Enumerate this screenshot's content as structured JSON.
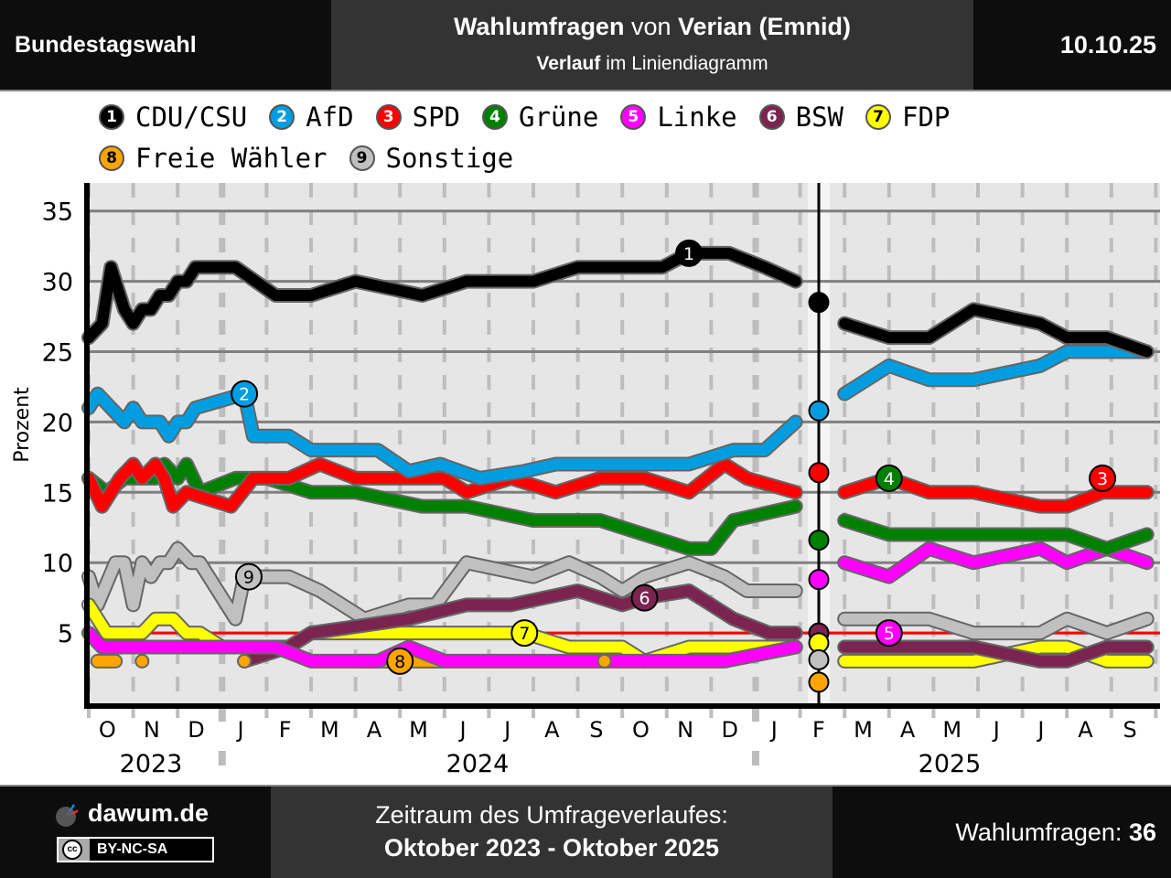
{
  "header": {
    "left": "Bundestagswahl",
    "title_bold1": "Wahlumfragen",
    "title_mid": " von ",
    "title_bold2": "Verian (Emnid)",
    "subtitle_bold": "Verlauf",
    "subtitle_rest": " im Liniendiagramm",
    "date": "10.10.25"
  },
  "legend": [
    {
      "num": "1",
      "label": "CDU/CSU",
      "color": "#000000",
      "text": "#ffffff"
    },
    {
      "num": "2",
      "label": "AfD",
      "color": "#009ee0",
      "text": "#ffffff"
    },
    {
      "num": "3",
      "label": "SPD",
      "color": "#ff0000",
      "text": "#ffffff"
    },
    {
      "num": "4",
      "label": "Grüne",
      "color": "#008000",
      "text": "#ffffff"
    },
    {
      "num": "5",
      "label": "Linke",
      "color": "#ff00ff",
      "text": "#ffffff"
    },
    {
      "num": "6",
      "label": "BSW",
      "color": "#7b2450",
      "text": "#ffffff"
    },
    {
      "num": "7",
      "label": "FDP",
      "color": "#ffff00",
      "text": "#000000"
    },
    {
      "num": "8",
      "label": "Freie Wähler",
      "color": "#ffa500",
      "text": "#000000"
    },
    {
      "num": "9",
      "label": "Sonstige",
      "color": "#c0c0c0",
      "text": "#000000"
    }
  ],
  "footer": {
    "brand": "dawum.de",
    "license": "BY-NC-SA",
    "license_icon": "cc",
    "period_label": "Zeitraum des Umfrageverlaufes:",
    "period_value": "Oktober 2023 - Oktober 2025",
    "count_label": "Wahlumfragen: ",
    "count_value": "36"
  },
  "chart_data": {
    "type": "line",
    "title": "Wahlumfragen von Verian (Emnid) – Verlauf im Liniendiagramm",
    "xlabel": "",
    "ylabel": "Prozent",
    "ylim": [
      0,
      37
    ],
    "yticks": [
      5,
      10,
      15,
      20,
      25,
      30,
      35
    ],
    "threshold": 5,
    "threshold_color": "#ff0000",
    "x_range": [
      "2023-10-01",
      "2025-10-10"
    ],
    "month_ticks": [
      "O",
      "N",
      "D",
      "J",
      "F",
      "M",
      "A",
      "M",
      "J",
      "J",
      "A",
      "S",
      "O",
      "N",
      "D",
      "J",
      "F",
      "M",
      "A",
      "M",
      "J",
      "J",
      "A",
      "S"
    ],
    "year_labels": [
      {
        "label": "2023",
        "center": "2023-11-15"
      },
      {
        "label": "2024",
        "center": "2024-07-01"
      },
      {
        "label": "2025",
        "center": "2025-06-01"
      }
    ],
    "election_date": "2025-02-23",
    "election_results": [
      {
        "party": "CDU/CSU",
        "value": 28.5
      },
      {
        "party": "AfD",
        "value": 20.8
      },
      {
        "party": "SPD",
        "value": 16.4
      },
      {
        "party": "Grüne",
        "value": 11.6
      },
      {
        "party": "Linke",
        "value": 8.8
      },
      {
        "party": "BSW",
        "value": 5.0
      },
      {
        "party": "FDP",
        "value": 4.3
      },
      {
        "party": "Sonstige",
        "value": 3.1
      },
      {
        "party": "Freie Wähler",
        "value": 1.5
      }
    ],
    "series": [
      {
        "name": "CDU/CSU",
        "num": "1",
        "label_at": 13.5,
        "x": [
          0,
          0.3,
          0.5,
          0.8,
          1.0,
          1.2,
          1.4,
          1.6,
          1.8,
          2.0,
          2.2,
          2.4,
          3.0,
          3.3,
          4.2,
          4.5,
          5.0,
          6.0,
          7.5,
          8.5,
          9.0,
          10.0,
          11.0,
          11.9,
          12.9,
          13.5,
          14.4,
          15.2,
          15.9
        ],
        "y": [
          26,
          27,
          31,
          28,
          27,
          28,
          28,
          29,
          29,
          30,
          30,
          31,
          31,
          31,
          29,
          29,
          29,
          30,
          29,
          30,
          30,
          30,
          31,
          31,
          31,
          32,
          32,
          31,
          30
        ]
      },
      {
        "name": "CDU/CSU",
        "num": "1",
        "segment": 2,
        "x": [
          17.0,
          18.0,
          18.9,
          19.9,
          21.4,
          22.0,
          22.9,
          23.8
        ],
        "y": [
          27,
          26,
          26,
          28,
          27,
          26,
          26,
          25
        ]
      },
      {
        "name": "AfD",
        "num": "2",
        "label_at": 3.5,
        "x": [
          0,
          0.2,
          0.8,
          1.0,
          1.2,
          1.6,
          1.8,
          2.0,
          2.2,
          2.4,
          3.5,
          3.7,
          4.5,
          5.0,
          6.0,
          6.5,
          7.2,
          7.9,
          8.8,
          9.8,
          10.5,
          11.5,
          12.5,
          13.5,
          14.5,
          15.2,
          15.9
        ],
        "y": [
          21,
          22,
          20,
          21,
          20,
          20,
          19,
          20,
          20,
          21,
          22,
          19,
          19,
          18,
          18,
          18,
          16.5,
          17,
          16,
          16.5,
          17,
          17,
          17,
          17,
          18,
          18,
          20
        ]
      },
      {
        "name": "AfD",
        "num": "2",
        "segment": 2,
        "x": [
          17.0,
          18.0,
          18.9,
          19.9,
          21.4,
          22.0,
          22.9,
          23.8
        ],
        "y": [
          22,
          24,
          23,
          23,
          24,
          25,
          25,
          25
        ]
      },
      {
        "name": "SPD",
        "num": "3",
        "label_at": 22.8,
        "x": [
          0,
          0.3,
          0.7,
          1.0,
          1.2,
          1.5,
          1.7,
          1.9,
          2.2,
          3.2,
          3.7,
          4.5,
          5.2,
          6.0,
          7.0,
          8.0,
          8.5,
          9.5,
          10.5,
          11.5,
          12.5,
          13.5,
          14.3,
          14.8,
          15.9
        ],
        "y": [
          16,
          14,
          16,
          17,
          16,
          17,
          16,
          14,
          15,
          14,
          16,
          16,
          17,
          16,
          16,
          16,
          15,
          16,
          15,
          16,
          16,
          15,
          17,
          16,
          15
        ]
      },
      {
        "name": "SPD",
        "num": "3",
        "segment": 2,
        "x": [
          17.0,
          18.0,
          18.9,
          19.9,
          21.4,
          22.0,
          22.8,
          23.8
        ],
        "y": [
          15,
          16,
          15,
          15,
          14,
          14,
          15,
          15
        ]
      },
      {
        "name": "Grüne",
        "num": "4",
        "label_at": 18.0,
        "x": [
          0,
          0.4,
          0.8,
          1.0,
          1.5,
          1.7,
          2.0,
          2.2,
          2.5,
          3.3,
          4.0,
          5.0,
          6.0,
          7.5,
          8.5,
          10.0,
          11.5,
          12.5,
          13.5,
          14.0,
          14.5,
          15.9
        ],
        "y": [
          16,
          15,
          16,
          16,
          16,
          17,
          16,
          17,
          15,
          16,
          16,
          15,
          15,
          14,
          14,
          13,
          13,
          12,
          11,
          11,
          13,
          14
        ]
      },
      {
        "name": "Grüne",
        "num": "4",
        "segment": 2,
        "x": [
          17.0,
          18.0,
          18.9,
          19.9,
          21.4,
          22.0,
          22.9,
          23.8
        ],
        "y": [
          13,
          12,
          12,
          12,
          12,
          12,
          11,
          12
        ]
      },
      {
        "name": "Linke",
        "num": "5",
        "label_at": 18.0,
        "x": [
          0,
          0.3,
          0.5,
          1.0,
          1.5,
          2.0,
          2.5,
          3.5,
          4.2,
          5.0,
          6.5,
          7.2,
          8.0,
          9.0,
          10.5,
          12.0,
          13.5,
          14.3,
          15.9
        ],
        "y": [
          5,
          4,
          4,
          4,
          4,
          4,
          4,
          4,
          4,
          3,
          3,
          4,
          3,
          3,
          3,
          3,
          3,
          3,
          4
        ]
      },
      {
        "name": "Linke",
        "num": "5",
        "segment": 2,
        "x": [
          17.0,
          18.0,
          18.9,
          19.9,
          21.4,
          22.0,
          22.9,
          23.8
        ],
        "y": [
          10,
          9,
          11,
          10,
          11,
          10,
          11,
          10
        ]
      },
      {
        "name": "BSW",
        "num": "6",
        "label_at": 12.5,
        "x": [
          3.5,
          4.5,
          5.0,
          7.2,
          8.5,
          9.5,
          11.0,
          12.0,
          12.5,
          13.5,
          14.5,
          15.3,
          15.9
        ],
        "y": [
          3,
          4,
          5,
          6,
          7,
          7,
          8,
          7,
          7.5,
          8,
          6,
          5,
          5
        ]
      },
      {
        "name": "BSW",
        "num": "6",
        "segment": 2,
        "x": [
          17.0,
          18.0,
          18.9,
          19.9,
          21.4,
          22.0,
          22.9,
          23.8
        ],
        "y": [
          4,
          4,
          4,
          4,
          3,
          3,
          4,
          4
        ]
      },
      {
        "name": "FDP",
        "num": "7",
        "label_at": 9.8,
        "x": [
          0,
          0.4,
          0.8,
          1.2,
          1.5,
          1.9,
          2.2,
          2.5,
          3.0,
          3.5,
          4.5,
          5.0,
          6.0,
          7.5,
          9.8,
          10.8,
          11.5,
          12.0,
          12.5,
          13.5,
          14.0,
          14.5,
          15.9
        ],
        "y": [
          7,
          5,
          5,
          5,
          6,
          6,
          5,
          5,
          4,
          4,
          4,
          5,
          5,
          5,
          5,
          4,
          4,
          4,
          3,
          4,
          4,
          4,
          4
        ]
      },
      {
        "name": "FDP",
        "num": "7",
        "segment": 2,
        "x": [
          17.0,
          18.0,
          18.9,
          19.9,
          21.4,
          22.0,
          22.9,
          23.8
        ],
        "y": [
          3,
          3,
          3,
          3,
          4,
          4,
          3,
          3
        ]
      },
      {
        "name": "Freie Wähler",
        "num": "8",
        "label_at": 7.0,
        "x": [
          6.1,
          8.0
        ],
        "y": [
          3,
          3
        ]
      },
      {
        "name": "Sonstige",
        "num": "9",
        "label_at": 3.6,
        "x": [
          0,
          0.2,
          0.6,
          0.8,
          1.0,
          1.2,
          1.4,
          1.6,
          1.8,
          2.0,
          2.3,
          2.5,
          3.3,
          3.5,
          4.0,
          4.5,
          5.2,
          6.2,
          7.2,
          7.8,
          8.5,
          10.0,
          10.8,
          11.5,
          12.0,
          12.5,
          13.5,
          14.3,
          14.8,
          15.9
        ],
        "y": [
          9,
          7,
          10,
          10,
          7,
          10,
          9,
          10,
          10,
          11,
          10,
          10,
          6,
          9,
          9,
          9,
          8,
          6,
          7,
          7,
          10,
          9,
          10,
          9,
          8,
          9,
          10,
          9,
          8,
          8
        ]
      },
      {
        "name": "Sonstige",
        "num": "9",
        "segment": 2,
        "x": [
          17.0,
          18.0,
          18.9,
          19.9,
          21.4,
          22.0,
          22.9,
          23.8
        ],
        "y": [
          6,
          6,
          6,
          5,
          5,
          6,
          5,
          6
        ]
      }
    ],
    "freie_waehler_dots": [
      {
        "x": 0.2,
        "y": 3,
        "x2": 0.6
      },
      {
        "x": 1.2,
        "y": 3
      },
      {
        "x": 3.5,
        "y": 3
      },
      {
        "x": 11.6,
        "y": 3
      }
    ]
  }
}
